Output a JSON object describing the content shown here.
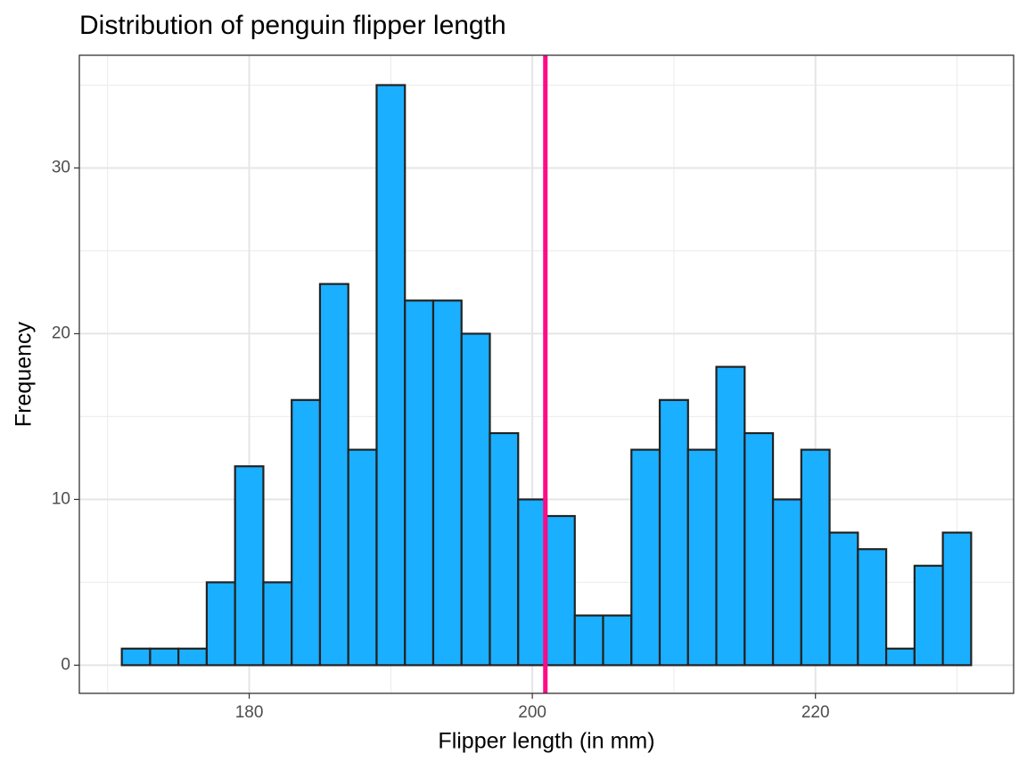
{
  "chart_data": {
    "type": "histogram",
    "title": "Distribution of penguin flipper length",
    "x_label": "Flipper length (in mm)",
    "y_label": "Frequency",
    "bins": [
      171,
      173,
      175,
      177,
      179,
      181,
      183,
      185,
      187,
      189,
      191,
      193,
      195,
      197,
      199,
      201,
      203,
      205,
      207,
      209,
      211,
      213,
      215,
      217,
      219,
      221,
      223,
      225,
      227,
      229,
      231
    ],
    "values": [
      1,
      1,
      1,
      5,
      12,
      5,
      16,
      23,
      13,
      35,
      22,
      22,
      20,
      14,
      10,
      9,
      3,
      3,
      13,
      16,
      13,
      18,
      14,
      10,
      13,
      8,
      7,
      1,
      6,
      8
    ],
    "color": "#1aafff",
    "edge_color": "#222222",
    "xlim": [
      168,
      234
    ],
    "ylim": [
      -1.7,
      36.8
    ],
    "xticks": [
      180,
      200,
      220
    ],
    "yticks": [
      0,
      10,
      20,
      30
    ],
    "x_minor_ticks": [
      170,
      190,
      210,
      230
    ],
    "y_minor_ticks": [
      5,
      15,
      25,
      35
    ],
    "grid": true,
    "vline": {
      "value": 200.92,
      "color": "#ff0a87"
    }
  }
}
